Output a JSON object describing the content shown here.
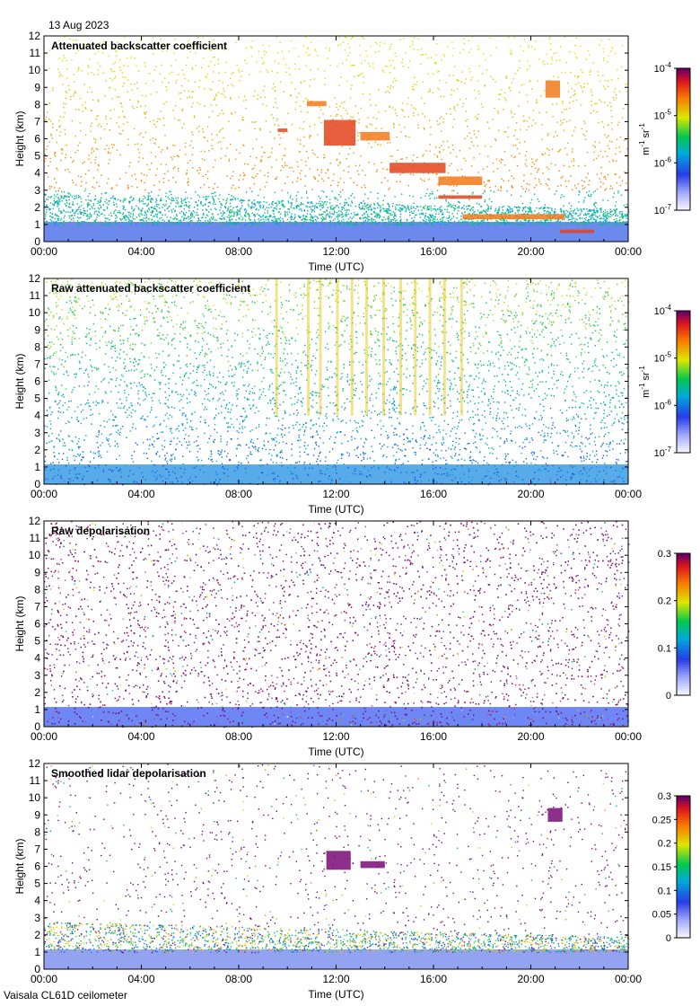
{
  "header": {
    "date": "13 Aug 2023"
  },
  "footer": {
    "instrument": "Vaisala CL61D ceilometer"
  },
  "colors": {
    "frame": "#000000",
    "background": "#ffffff",
    "accent_cloud": "#e4431c",
    "depol_purple": "#7a0a78",
    "boundary_layer_blue": "#1f3fd8"
  },
  "chart_data": [
    {
      "type": "heatmap",
      "title": "Attenuated backscatter coefficient",
      "xlabel": "Time (UTC)",
      "ylabel": "Height (km)",
      "x_ticks": [
        "00:00",
        "04:00",
        "08:00",
        "12:00",
        "16:00",
        "20:00",
        "00:00"
      ],
      "x_range_hours": [
        0,
        24
      ],
      "y_ticks": [
        "0",
        "1",
        "2",
        "3",
        "4",
        "5",
        "6",
        "7",
        "8",
        "9",
        "10",
        "11",
        "12"
      ],
      "ylim": [
        0,
        12
      ],
      "colorbar": {
        "scale": "log",
        "range": [
          1e-07,
          0.0001
        ],
        "tick_labels": [
          {
            "base": "10",
            "exp": "-7"
          },
          {
            "base": "10",
            "exp": "-6"
          },
          {
            "base": "10",
            "exp": "-5"
          },
          {
            "base": "10",
            "exp": "-4"
          }
        ],
        "unit_parts": [
          "m",
          "-1",
          " sr",
          "-1"
        ]
      },
      "features": {
        "boundary_layer_top_km": 1.0,
        "cloud_layers": [
          {
            "start_h": 9.6,
            "end_h": 10.0,
            "base_km": 6.4,
            "top_km": 6.6
          },
          {
            "start_h": 10.8,
            "end_h": 11.6,
            "base_km": 7.9,
            "top_km": 8.2
          },
          {
            "start_h": 11.5,
            "end_h": 12.8,
            "base_km": 5.6,
            "top_km": 7.1
          },
          {
            "start_h": 13.0,
            "end_h": 14.2,
            "base_km": 5.9,
            "top_km": 6.4
          },
          {
            "start_h": 14.2,
            "end_h": 16.5,
            "base_km": 4.0,
            "top_km": 4.6
          },
          {
            "start_h": 16.2,
            "end_h": 18.0,
            "base_km": 3.3,
            "top_km": 3.8
          },
          {
            "start_h": 16.2,
            "end_h": 18.0,
            "base_km": 2.5,
            "top_km": 2.7
          },
          {
            "start_h": 17.2,
            "end_h": 21.4,
            "base_km": 1.3,
            "top_km": 1.6
          },
          {
            "start_h": 21.2,
            "end_h": 22.6,
            "base_km": 0.5,
            "top_km": 0.7
          },
          {
            "start_h": 20.6,
            "end_h": 21.2,
            "base_km": 8.4,
            "top_km": 9.4
          }
        ]
      }
    },
    {
      "type": "heatmap",
      "title": "Raw attenuated backscatter coefficient",
      "xlabel": "Time (UTC)",
      "ylabel": "Height (km)",
      "x_ticks": [
        "00:00",
        "04:00",
        "08:00",
        "12:00",
        "16:00",
        "20:00",
        "00:00"
      ],
      "x_range_hours": [
        0,
        24
      ],
      "y_ticks": [
        "0",
        "1",
        "2",
        "3",
        "4",
        "5",
        "6",
        "7",
        "8",
        "9",
        "10",
        "11",
        "12"
      ],
      "ylim": [
        0,
        12
      ],
      "colorbar": {
        "scale": "log",
        "range": [
          1e-07,
          0.0001
        ],
        "tick_labels": [
          {
            "base": "10",
            "exp": "-7"
          },
          {
            "base": "10",
            "exp": "-6"
          },
          {
            "base": "10",
            "exp": "-5"
          },
          {
            "base": "10",
            "exp": "-4"
          }
        ],
        "unit_parts": [
          "m",
          "-1",
          " sr",
          "-1"
        ]
      },
      "features": {
        "boundary_layer_top_km": 1.0,
        "background": "noisy green/blue signal increasing with height",
        "precipitation_streaks_h": [
          9.5,
          10.8,
          11.3,
          12.0,
          12.6,
          13.2,
          13.9,
          14.6,
          15.2,
          15.8,
          16.4,
          17.1
        ]
      }
    },
    {
      "type": "heatmap",
      "title": "Raw depolarisation",
      "xlabel": "Time (UTC)",
      "ylabel": "Height (km)",
      "x_ticks": [
        "00:00",
        "04:00",
        "08:00",
        "12:00",
        "16:00",
        "20:00",
        "00:00"
      ],
      "x_range_hours": [
        0,
        24
      ],
      "y_ticks": [
        "0",
        "1",
        "2",
        "3",
        "4",
        "5",
        "6",
        "7",
        "8",
        "9",
        "10",
        "11",
        "12"
      ],
      "ylim": [
        0,
        12
      ],
      "colorbar": {
        "scale": "linear",
        "range": [
          0,
          0.3
        ],
        "tick_labels": [
          "0",
          "0.1",
          "0.2",
          "0.3"
        ]
      },
      "features": {
        "boundary_layer_top_km": 1.0
      }
    },
    {
      "type": "heatmap",
      "title": "Smoothed lidar depolarisation",
      "xlabel": "Time (UTC)",
      "ylabel": "Height (km)",
      "x_ticks": [
        "00:00",
        "04:00",
        "08:00",
        "12:00",
        "16:00",
        "20:00",
        "00:00"
      ],
      "x_range_hours": [
        0,
        24
      ],
      "y_ticks": [
        "0",
        "1",
        "2",
        "3",
        "4",
        "5",
        "6",
        "7",
        "8",
        "9",
        "10",
        "11",
        "12"
      ],
      "ylim": [
        0,
        12
      ],
      "colorbar": {
        "scale": "linear",
        "range": [
          0,
          0.3
        ],
        "tick_labels": [
          "0",
          "0.05",
          "0.1",
          "0.15",
          "0.2",
          "0.25",
          "0.3"
        ]
      },
      "features": {
        "boundary_layer_top_km": 1.0,
        "depolarising_layers": [
          {
            "start_h": 11.6,
            "end_h": 12.6,
            "base_km": 5.8,
            "top_km": 6.9
          },
          {
            "start_h": 13.0,
            "end_h": 14.0,
            "base_km": 5.9,
            "top_km": 6.3
          },
          {
            "start_h": 20.7,
            "end_h": 21.3,
            "base_km": 8.6,
            "top_km": 9.4
          }
        ]
      }
    }
  ]
}
